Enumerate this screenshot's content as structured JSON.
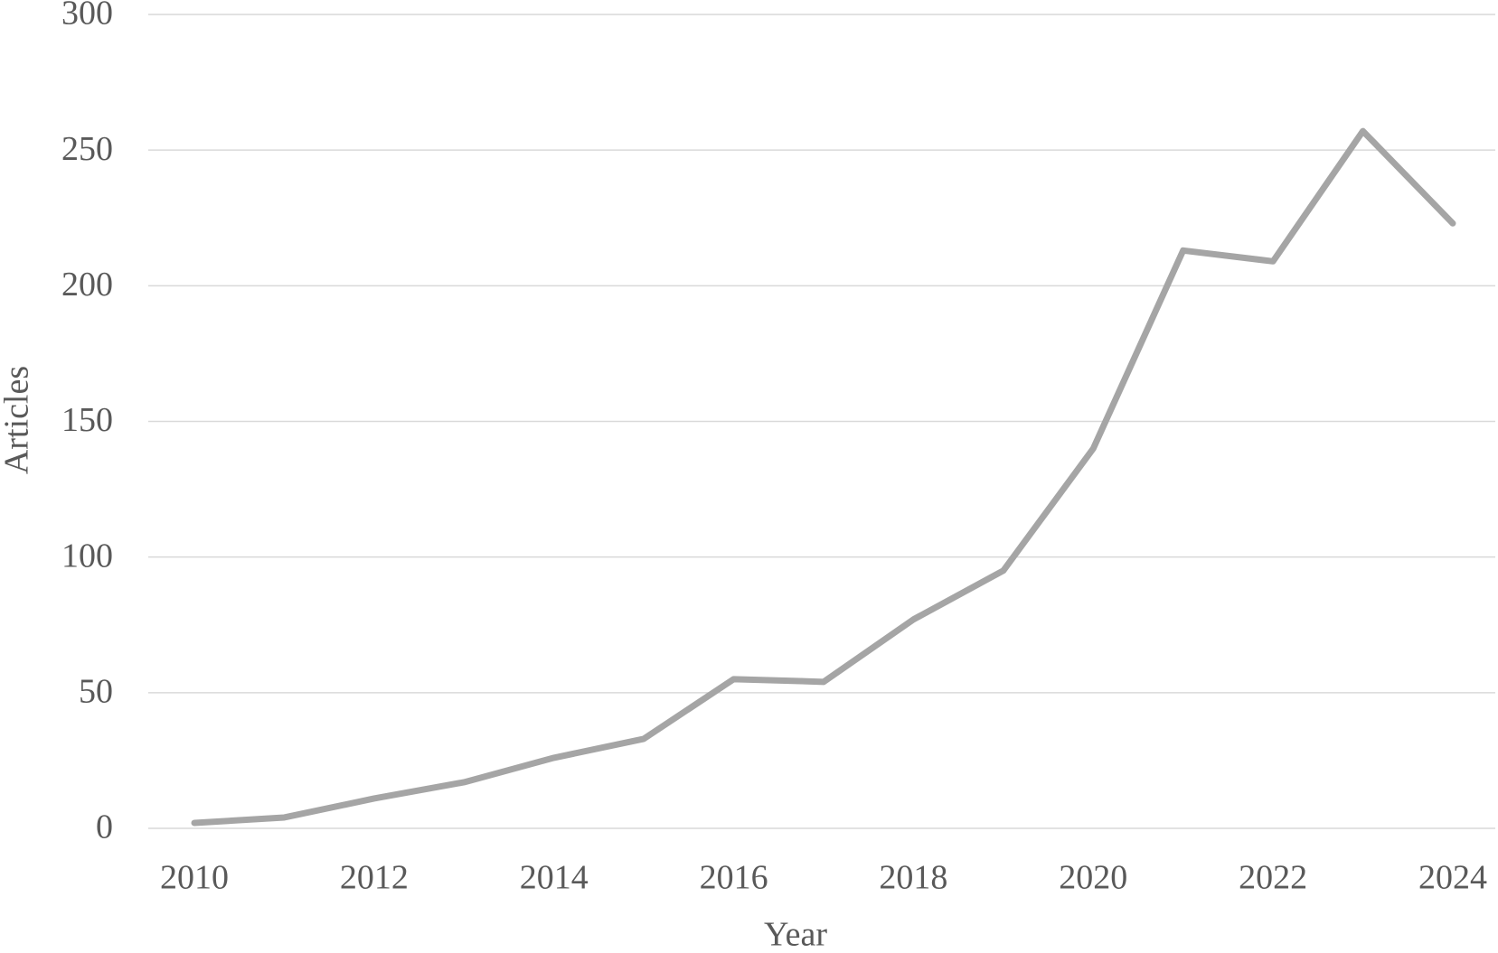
{
  "chart_data": {
    "type": "line",
    "x_label": "Year",
    "y_label": "Articles",
    "x": [
      2010,
      2011,
      2012,
      2013,
      2014,
      2015,
      2016,
      2017,
      2018,
      2019,
      2020,
      2021,
      2022,
      2023,
      2024
    ],
    "values": [
      2,
      4,
      11,
      17,
      26,
      33,
      55,
      54,
      77,
      95,
      140,
      213,
      209,
      257,
      223
    ],
    "color": "#a5a5a5",
    "xlim": [
      2010,
      2024
    ],
    "xticks": [
      2010,
      2012,
      2014,
      2016,
      2018,
      2020,
      2022,
      2024
    ],
    "ylim": [
      0,
      300
    ],
    "yticks": [
      0,
      50,
      100,
      150,
      200,
      250,
      300
    ],
    "grid": true
  }
}
